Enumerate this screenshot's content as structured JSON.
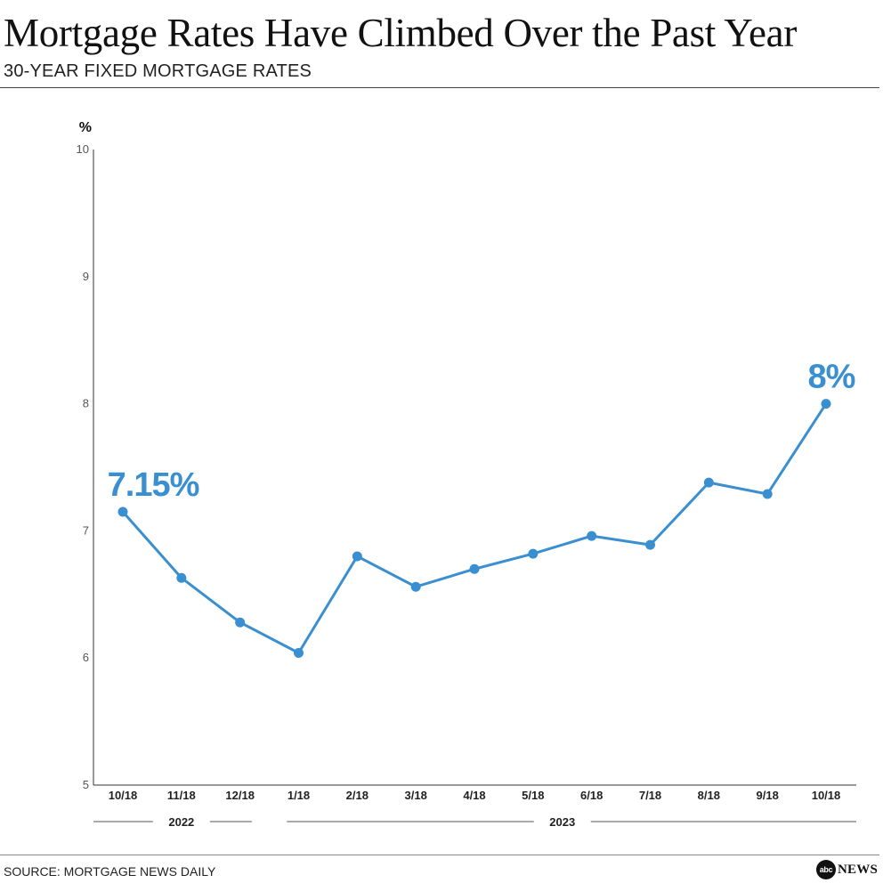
{
  "title": "Mortgage Rates Have Climbed Over the Past Year",
  "subtitle": "30-YEAR FIXED MORTGAGE RATES",
  "source": "SOURCE: MORTGAGE NEWS DAILY",
  "logo": {
    "mark": "abc",
    "text": "NEWS"
  },
  "colors": {
    "series": "#3a8fd1",
    "axis": "#333333",
    "text": "#1a1a1a"
  },
  "chart_data": {
    "type": "line",
    "ylabel": "%",
    "ylim": [
      5,
      10
    ],
    "yticks": [
      5,
      6,
      7,
      8,
      9,
      10
    ],
    "grid": false,
    "categories": [
      "10/18",
      "11/18",
      "12/18",
      "1/18",
      "2/18",
      "3/18",
      "4/18",
      "5/18",
      "6/18",
      "7/18",
      "8/18",
      "9/18",
      "10/18"
    ],
    "values": [
      7.15,
      6.63,
      6.28,
      6.04,
      6.8,
      6.56,
      6.7,
      6.82,
      6.96,
      6.89,
      7.38,
      7.29,
      8.0
    ],
    "year_groups": [
      {
        "label": "2022",
        "from": 0,
        "to": 2
      },
      {
        "label": "2023",
        "from": 3,
        "to": 12
      }
    ],
    "annotations": [
      {
        "index": 0,
        "text": "7.15%"
      },
      {
        "index": 12,
        "text": "8%"
      }
    ]
  }
}
